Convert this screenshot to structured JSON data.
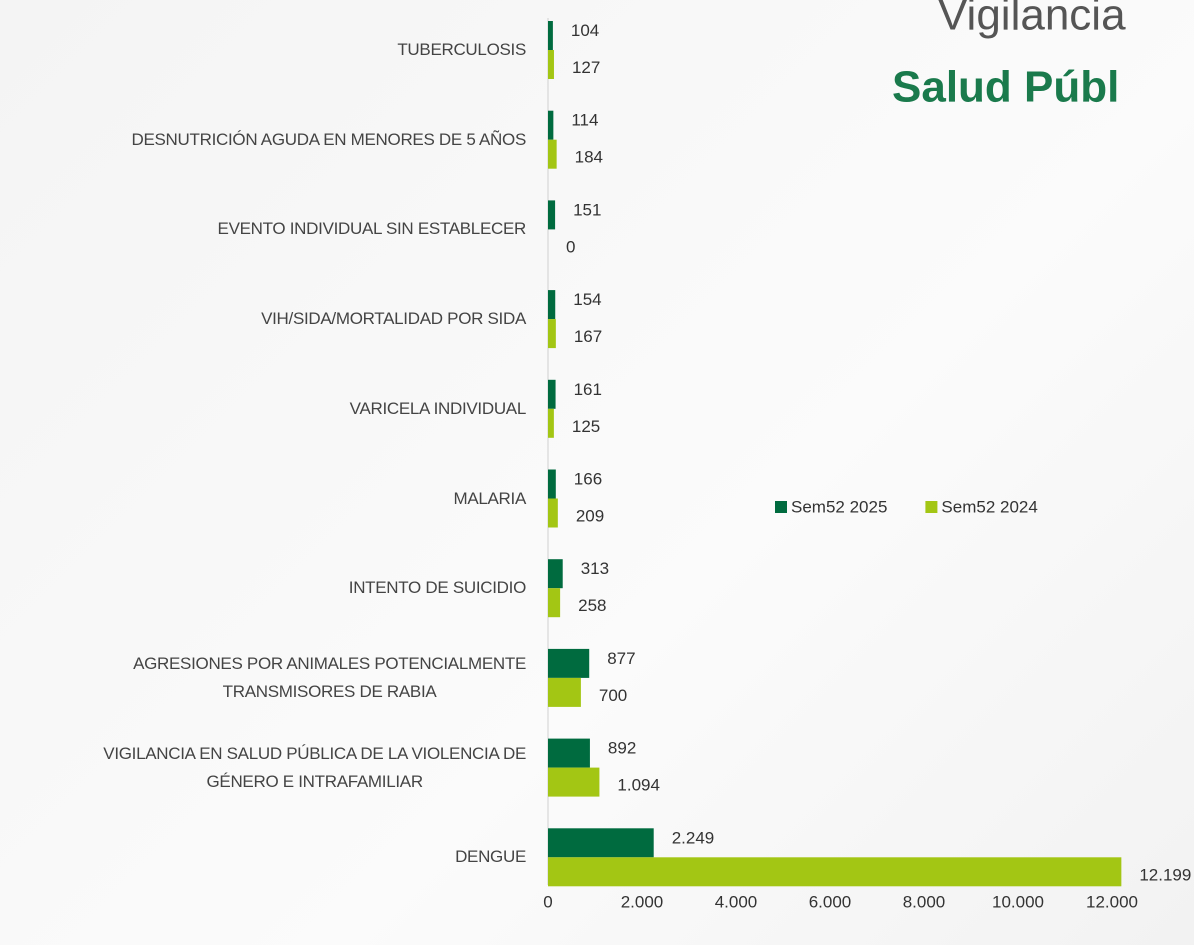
{
  "chart_data": {
    "type": "barh",
    "title_lines": [
      "Vigilancia",
      "Salud Públ"
    ],
    "categories": [
      "TUBERCULOSIS",
      "DESNUTRICIÓN AGUDA EN MENORES DE 5 AÑOS",
      "EVENTO INDIVIDUAL SIN ESTABLECER",
      "VIH/SIDA/MORTALIDAD POR SIDA",
      "VARICELA INDIVIDUAL",
      "MALARIA",
      "INTENTO DE SUICIDIO",
      "AGRESIONES POR ANIMALES POTENCIALMENTE\nTRANSMISORES DE RABIA",
      "VIGILANCIA EN SALUD PÚBLICA DE LA VIOLENCIA DE\nGÉNERO E INTRAFAMILIAR",
      "DENGUE"
    ],
    "series": [
      {
        "name": "Sem52 2025",
        "color": "#006b3f",
        "values": [
          104,
          114,
          151,
          154,
          161,
          166,
          313,
          877,
          892,
          2249
        ],
        "value_labels": [
          "104",
          "114",
          "151",
          "154",
          "161",
          "166",
          "313",
          "877",
          "892",
          "2.249"
        ]
      },
      {
        "name": "Sem52 2024",
        "color": "#a3c614",
        "values": [
          127,
          184,
          0,
          167,
          125,
          209,
          258,
          700,
          1094,
          12199
        ],
        "value_labels": [
          "127",
          "184",
          "0",
          "167",
          "125",
          "209",
          "258",
          "700",
          "1.094",
          "12.199"
        ]
      }
    ],
    "xlim": [
      0,
      12000
    ],
    "xticks": [
      0,
      {
        "value": 2000,
        "label": "2.000"
      },
      {
        "value": 4000,
        "label": "4.000"
      },
      {
        "value": 6000,
        "label": "6.000"
      },
      {
        "value": 8000,
        "label": "8.000"
      },
      {
        "value": 10000,
        "label": "10.000"
      },
      {
        "value": 12000,
        "label": "12.000"
      }
    ],
    "legend": "right"
  }
}
